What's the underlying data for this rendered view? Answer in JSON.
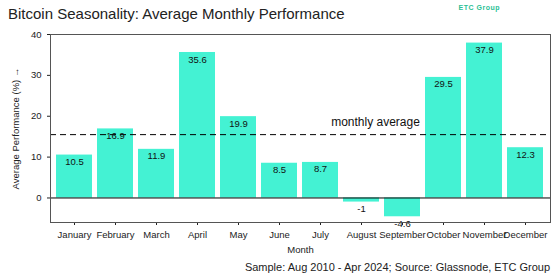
{
  "chart_data": {
    "type": "bar",
    "title": "Bitcoin Seasonality: Average Monthly Performance",
    "logo": "ETC Group",
    "x_label": "Month",
    "y_label": "Average Performance (%)",
    "categories": [
      "January",
      "February",
      "March",
      "April",
      "May",
      "June",
      "July",
      "August",
      "September",
      "October",
      "November",
      "December"
    ],
    "values": [
      10.5,
      16.9,
      11.9,
      35.6,
      19.9,
      8.5,
      8.7,
      -1,
      -4.6,
      29.5,
      37.9,
      12.3
    ],
    "color": "#44f2d3",
    "ylim": [
      -6,
      40
    ],
    "yticks": [
      0,
      10,
      20,
      30,
      40
    ],
    "grid": false,
    "data_labels": true,
    "reference_line": {
      "label": "monthly average",
      "value": 15.5
    },
    "source": "Sample: Aug 2010 - Apr 2024; Source: Glassnode, ETC Group"
  }
}
